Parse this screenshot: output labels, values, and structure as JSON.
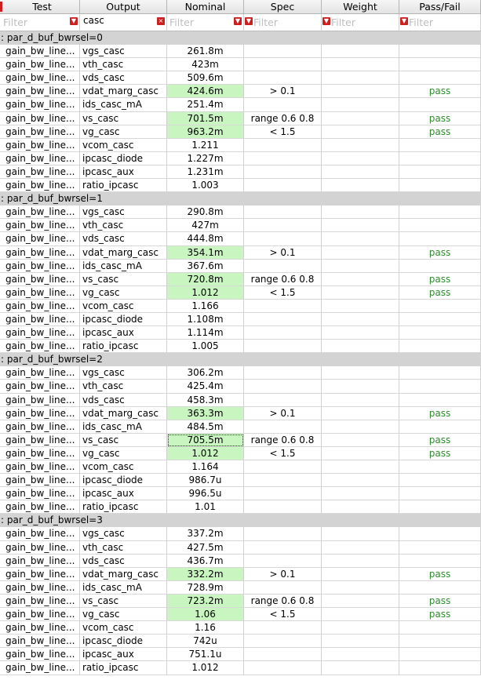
{
  "columns": [
    "Test",
    "Output",
    "Nominal",
    "Spec",
    "Weight",
    "Pass/Fail"
  ],
  "filters": {
    "placeholder": "Filter",
    "output_value": "casc",
    "clear_glyph": "×",
    "dropdown_glyph": "▼"
  },
  "groups": [
    {
      "label": ": par_d_buf_bwrsel=0",
      "rows": [
        {
          "test": "gain_bw_line...",
          "output": "vgs_casc",
          "nominal": "261.8m",
          "spec": "",
          "weight": "",
          "pf": "",
          "hl": false
        },
        {
          "test": "gain_bw_line...",
          "output": "vth_casc",
          "nominal": "423m",
          "spec": "",
          "weight": "",
          "pf": "",
          "hl": false
        },
        {
          "test": "gain_bw_line...",
          "output": "vds_casc",
          "nominal": "509.6m",
          "spec": "",
          "weight": "",
          "pf": "",
          "hl": false
        },
        {
          "test": "gain_bw_line...",
          "output": "vdat_marg_casc",
          "nominal": "424.6m",
          "spec": "> 0.1",
          "weight": "",
          "pf": "pass",
          "hl": true
        },
        {
          "test": "gain_bw_line...",
          "output": "ids_casc_mA",
          "nominal": "251.4m",
          "spec": "",
          "weight": "",
          "pf": "",
          "hl": false
        },
        {
          "test": "gain_bw_line...",
          "output": "vs_casc",
          "nominal": "701.5m",
          "spec": "range 0.6 0.8",
          "weight": "",
          "pf": "pass",
          "hl": true
        },
        {
          "test": "gain_bw_line...",
          "output": "vg_casc",
          "nominal": "963.2m",
          "spec": "< 1.5",
          "weight": "",
          "pf": "pass",
          "hl": true
        },
        {
          "test": "gain_bw_line...",
          "output": "vcom_casc",
          "nominal": "1.211",
          "spec": "",
          "weight": "",
          "pf": "",
          "hl": false
        },
        {
          "test": "gain_bw_line...",
          "output": "ipcasc_diode",
          "nominal": "1.227m",
          "spec": "",
          "weight": "",
          "pf": "",
          "hl": false
        },
        {
          "test": "gain_bw_line...",
          "output": "ipcasc_aux",
          "nominal": "1.231m",
          "spec": "",
          "weight": "",
          "pf": "",
          "hl": false
        },
        {
          "test": "gain_bw_line...",
          "output": "ratio_ipcasc",
          "nominal": "1.003",
          "spec": "",
          "weight": "",
          "pf": "",
          "hl": false
        }
      ]
    },
    {
      "label": ": par_d_buf_bwrsel=1",
      "rows": [
        {
          "test": "gain_bw_line...",
          "output": "vgs_casc",
          "nominal": "290.8m",
          "spec": "",
          "weight": "",
          "pf": "",
          "hl": false
        },
        {
          "test": "gain_bw_line...",
          "output": "vth_casc",
          "nominal": "427m",
          "spec": "",
          "weight": "",
          "pf": "",
          "hl": false
        },
        {
          "test": "gain_bw_line...",
          "output": "vds_casc",
          "nominal": "444.8m",
          "spec": "",
          "weight": "",
          "pf": "",
          "hl": false
        },
        {
          "test": "gain_bw_line...",
          "output": "vdat_marg_casc",
          "nominal": "354.1m",
          "spec": "> 0.1",
          "weight": "",
          "pf": "pass",
          "hl": true
        },
        {
          "test": "gain_bw_line...",
          "output": "ids_casc_mA",
          "nominal": "367.6m",
          "spec": "",
          "weight": "",
          "pf": "",
          "hl": false
        },
        {
          "test": "gain_bw_line...",
          "output": "vs_casc",
          "nominal": "720.8m",
          "spec": "range 0.6 0.8",
          "weight": "",
          "pf": "pass",
          "hl": true
        },
        {
          "test": "gain_bw_line...",
          "output": "vg_casc",
          "nominal": "1.012",
          "spec": "< 1.5",
          "weight": "",
          "pf": "pass",
          "hl": true
        },
        {
          "test": "gain_bw_line...",
          "output": "vcom_casc",
          "nominal": "1.166",
          "spec": "",
          "weight": "",
          "pf": "",
          "hl": false
        },
        {
          "test": "gain_bw_line...",
          "output": "ipcasc_diode",
          "nominal": "1.108m",
          "spec": "",
          "weight": "",
          "pf": "",
          "hl": false
        },
        {
          "test": "gain_bw_line...",
          "output": "ipcasc_aux",
          "nominal": "1.114m",
          "spec": "",
          "weight": "",
          "pf": "",
          "hl": false
        },
        {
          "test": "gain_bw_line...",
          "output": "ratio_ipcasc",
          "nominal": "1.005",
          "spec": "",
          "weight": "",
          "pf": "",
          "hl": false
        }
      ]
    },
    {
      "label": ": par_d_buf_bwrsel=2",
      "rows": [
        {
          "test": "gain_bw_line...",
          "output": "vgs_casc",
          "nominal": "306.2m",
          "spec": "",
          "weight": "",
          "pf": "",
          "hl": false
        },
        {
          "test": "gain_bw_line...",
          "output": "vth_casc",
          "nominal": "425.4m",
          "spec": "",
          "weight": "",
          "pf": "",
          "hl": false
        },
        {
          "test": "gain_bw_line...",
          "output": "vds_casc",
          "nominal": "458.3m",
          "spec": "",
          "weight": "",
          "pf": "",
          "hl": false
        },
        {
          "test": "gain_bw_line...",
          "output": "vdat_marg_casc",
          "nominal": "363.3m",
          "spec": "> 0.1",
          "weight": "",
          "pf": "pass",
          "hl": true
        },
        {
          "test": "gain_bw_line...",
          "output": "ids_casc_mA",
          "nominal": "484.5m",
          "spec": "",
          "weight": "",
          "pf": "",
          "hl": false
        },
        {
          "test": "gain_bw_line...",
          "output": "vs_casc",
          "nominal": "705.5m",
          "spec": "range 0.6 0.8",
          "weight": "",
          "pf": "pass",
          "hl": true,
          "focus": true
        },
        {
          "test": "gain_bw_line...",
          "output": "vg_casc",
          "nominal": "1.012",
          "spec": "< 1.5",
          "weight": "",
          "pf": "pass",
          "hl": true
        },
        {
          "test": "gain_bw_line...",
          "output": "vcom_casc",
          "nominal": "1.164",
          "spec": "",
          "weight": "",
          "pf": "",
          "hl": false
        },
        {
          "test": "gain_bw_line...",
          "output": "ipcasc_diode",
          "nominal": "986.7u",
          "spec": "",
          "weight": "",
          "pf": "",
          "hl": false
        },
        {
          "test": "gain_bw_line...",
          "output": "ipcasc_aux",
          "nominal": "996.5u",
          "spec": "",
          "weight": "",
          "pf": "",
          "hl": false
        },
        {
          "test": "gain_bw_line...",
          "output": "ratio_ipcasc",
          "nominal": "1.01",
          "spec": "",
          "weight": "",
          "pf": "",
          "hl": false
        }
      ]
    },
    {
      "label": ": par_d_buf_bwrsel=3",
      "rows": [
        {
          "test": "gain_bw_line...",
          "output": "vgs_casc",
          "nominal": "337.2m",
          "spec": "",
          "weight": "",
          "pf": "",
          "hl": false
        },
        {
          "test": "gain_bw_line...",
          "output": "vth_casc",
          "nominal": "427.5m",
          "spec": "",
          "weight": "",
          "pf": "",
          "hl": false
        },
        {
          "test": "gain_bw_line...",
          "output": "vds_casc",
          "nominal": "436.7m",
          "spec": "",
          "weight": "",
          "pf": "",
          "hl": false
        },
        {
          "test": "gain_bw_line...",
          "output": "vdat_marg_casc",
          "nominal": "332.2m",
          "spec": "> 0.1",
          "weight": "",
          "pf": "pass",
          "hl": true
        },
        {
          "test": "gain_bw_line...",
          "output": "ids_casc_mA",
          "nominal": "728.9m",
          "spec": "",
          "weight": "",
          "pf": "",
          "hl": false
        },
        {
          "test": "gain_bw_line...",
          "output": "vs_casc",
          "nominal": "723.2m",
          "spec": "range 0.6 0.8",
          "weight": "",
          "pf": "pass",
          "hl": true
        },
        {
          "test": "gain_bw_line...",
          "output": "vg_casc",
          "nominal": "1.06",
          "spec": "< 1.5",
          "weight": "",
          "pf": "pass",
          "hl": true
        },
        {
          "test": "gain_bw_line...",
          "output": "vcom_casc",
          "nominal": "1.16",
          "spec": "",
          "weight": "",
          "pf": "",
          "hl": false
        },
        {
          "test": "gain_bw_line...",
          "output": "ipcasc_diode",
          "nominal": "742u",
          "spec": "",
          "weight": "",
          "pf": "",
          "hl": false
        },
        {
          "test": "gain_bw_line...",
          "output": "ipcasc_aux",
          "nominal": "751.1u",
          "spec": "",
          "weight": "",
          "pf": "",
          "hl": false
        },
        {
          "test": "gain_bw_line...",
          "output": "ratio_ipcasc",
          "nominal": "1.012",
          "spec": "",
          "weight": "",
          "pf": "",
          "hl": false
        }
      ]
    }
  ],
  "colors": {
    "nominal_highlight": "#c9f5c0",
    "pass_text": "#2e8b2e",
    "group_header_bg": "#d3d3d3",
    "filter_icon": "#cc1f1f"
  }
}
